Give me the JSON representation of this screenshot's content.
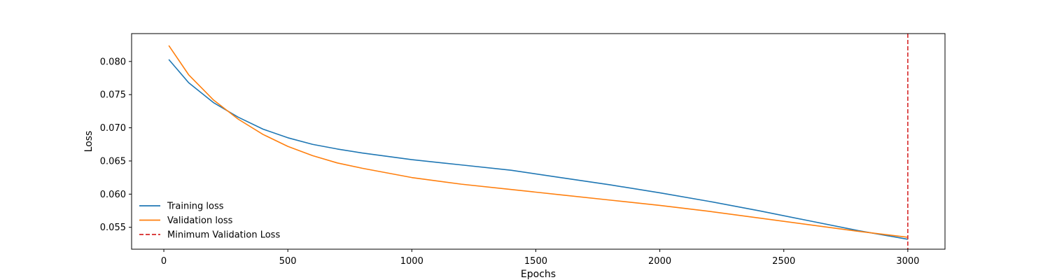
{
  "chart_data": {
    "type": "line",
    "title": "",
    "xlabel": "Epochs",
    "ylabel": "Loss",
    "xlim": [
      -130,
      3150
    ],
    "ylim": [
      0.0517,
      0.0842
    ],
    "xticks": [
      0,
      500,
      1000,
      1500,
      2000,
      2500,
      3000
    ],
    "yticks": [
      0.055,
      0.06,
      0.065,
      0.07,
      0.075,
      0.08
    ],
    "ytick_labels": [
      "0.055",
      "0.060",
      "0.065",
      "0.070",
      "0.075",
      "0.080"
    ],
    "grid": false,
    "legend_position": "lower-left",
    "series": [
      {
        "name": "Training loss",
        "color": "#1f77b4",
        "style": "solid",
        "x": [
          20,
          100,
          200,
          300,
          400,
          500,
          600,
          700,
          800,
          1000,
          1200,
          1400,
          1600,
          1800,
          2000,
          2200,
          2400,
          2600,
          2800,
          3000
        ],
        "y": [
          0.0803,
          0.0768,
          0.0738,
          0.0716,
          0.0698,
          0.0685,
          0.0675,
          0.0668,
          0.0662,
          0.0652,
          0.0644,
          0.0636,
          0.0625,
          0.0614,
          0.0602,
          0.0589,
          0.0575,
          0.056,
          0.0545,
          0.0532
        ]
      },
      {
        "name": "Validation loss",
        "color": "#ff7f0e",
        "style": "solid",
        "x": [
          20,
          100,
          200,
          300,
          400,
          500,
          600,
          700,
          800,
          1000,
          1200,
          1400,
          1600,
          1800,
          2000,
          2200,
          2400,
          2600,
          2800,
          3000
        ],
        "y": [
          0.0824,
          0.078,
          0.0742,
          0.0713,
          0.069,
          0.0672,
          0.0658,
          0.0647,
          0.0639,
          0.0625,
          0.0615,
          0.0607,
          0.0599,
          0.0591,
          0.0583,
          0.0574,
          0.0564,
          0.0554,
          0.0544,
          0.0535
        ]
      }
    ],
    "vlines": [
      {
        "name": "Minimum Validation Loss",
        "x": 3000,
        "color": "#d62728",
        "style": "dashed"
      }
    ]
  }
}
